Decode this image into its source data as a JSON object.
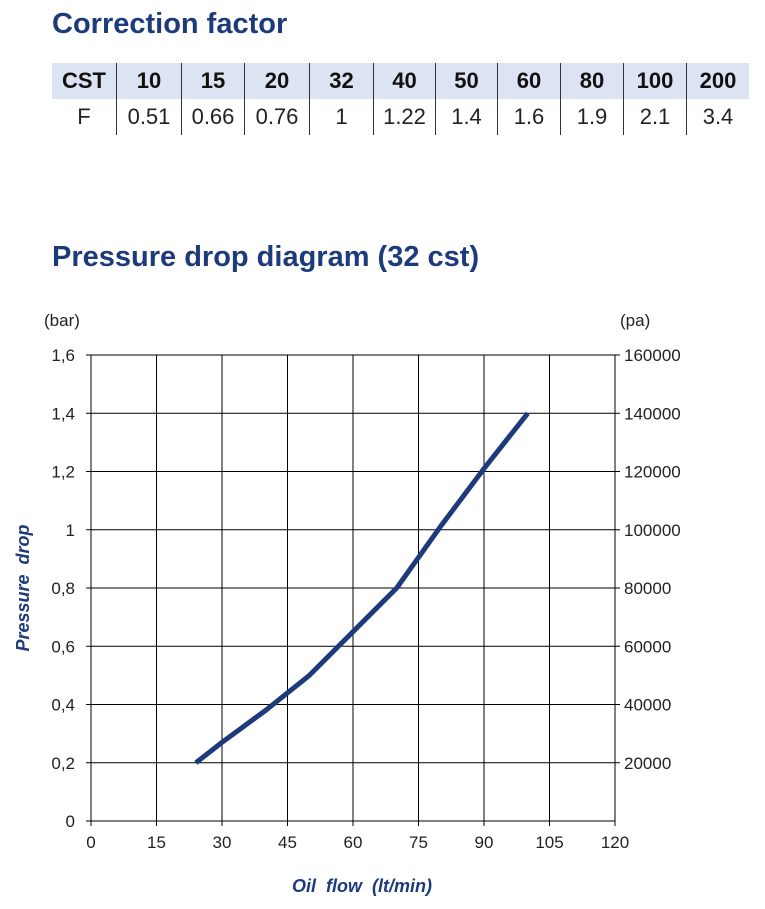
{
  "correction": {
    "title": "Correction factor",
    "header_label": "CST",
    "row_label": "F",
    "cst": [
      "10",
      "15",
      "20",
      "32",
      "40",
      "50",
      "60",
      "80",
      "100",
      "200"
    ],
    "f": [
      "0.51",
      "0.66",
      "0.76",
      "1",
      "1.22",
      "1.4",
      "1.6",
      "1.9",
      "2.1",
      "3.4"
    ]
  },
  "chart_data": {
    "type": "line",
    "title": "Pressure drop diagram (32 cst)",
    "xlabel": "Oil  flow  (lt/min)",
    "ylabel": "Pressure  drop",
    "y_unit_left": "(bar)",
    "y_unit_right": "(pa)",
    "xlim": [
      0,
      120
    ],
    "ylim": [
      0,
      1.6
    ],
    "y2lim": [
      0,
      160000
    ],
    "x_ticks": [
      "0",
      "15",
      "30",
      "45",
      "60",
      "75",
      "90",
      "105",
      "120"
    ],
    "y_ticks": [
      "0",
      "0,2",
      "0,4",
      "0,6",
      "0,8",
      "1",
      "1,2",
      "1,4",
      "1,6"
    ],
    "y2_ticks": [
      "20000",
      "40000",
      "60000",
      "80000",
      "100000",
      "120000",
      "140000",
      "160000"
    ],
    "grid": true,
    "colors": {
      "line": "#1d3a7a",
      "axis_title": "#1d3a7a",
      "grid": "#000000"
    },
    "series": [
      {
        "x": [
          24,
          30,
          40,
          50,
          60,
          70,
          80,
          90,
          100
        ],
        "y": [
          0.2,
          0.27,
          0.38,
          0.5,
          0.65,
          0.8,
          1.01,
          1.21,
          1.4
        ]
      }
    ]
  }
}
